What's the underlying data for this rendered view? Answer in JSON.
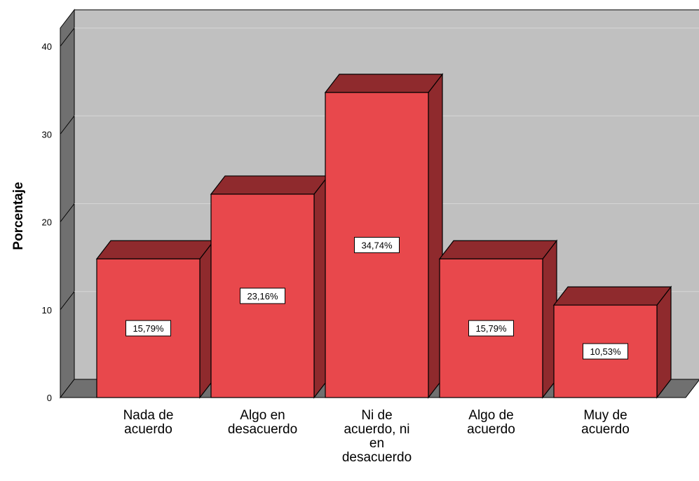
{
  "chart_data": {
    "type": "bar",
    "style": "3d",
    "title": "",
    "xlabel": "",
    "ylabel": "Porcentaje",
    "ylim": [
      0,
      40
    ],
    "yticks": [
      "0",
      "10",
      "20",
      "30",
      "40"
    ],
    "grid": true,
    "categories": [
      [
        "Nada de",
        "acuerdo"
      ],
      [
        "Algo en",
        "desacuerdo"
      ],
      [
        "Ni de",
        "acuerdo, ni",
        "en",
        "desacuerdo"
      ],
      [
        "Algo de",
        "acuerdo"
      ],
      [
        "Muy de",
        "acuerdo"
      ]
    ],
    "values": [
      15.79,
      23.16,
      34.74,
      15.79,
      10.53
    ],
    "data_labels": [
      "15,79%",
      "23,16%",
      "34,74%",
      "15,79%",
      "10,53%"
    ],
    "colors": {
      "bar_front": "#e8484c",
      "bar_top": "#8f2a2d",
      "bar_side": "#8f2a2d",
      "plot_back": "#c0c0c0",
      "plot_wall": "#707070",
      "grid": "#d6d6d6"
    }
  }
}
